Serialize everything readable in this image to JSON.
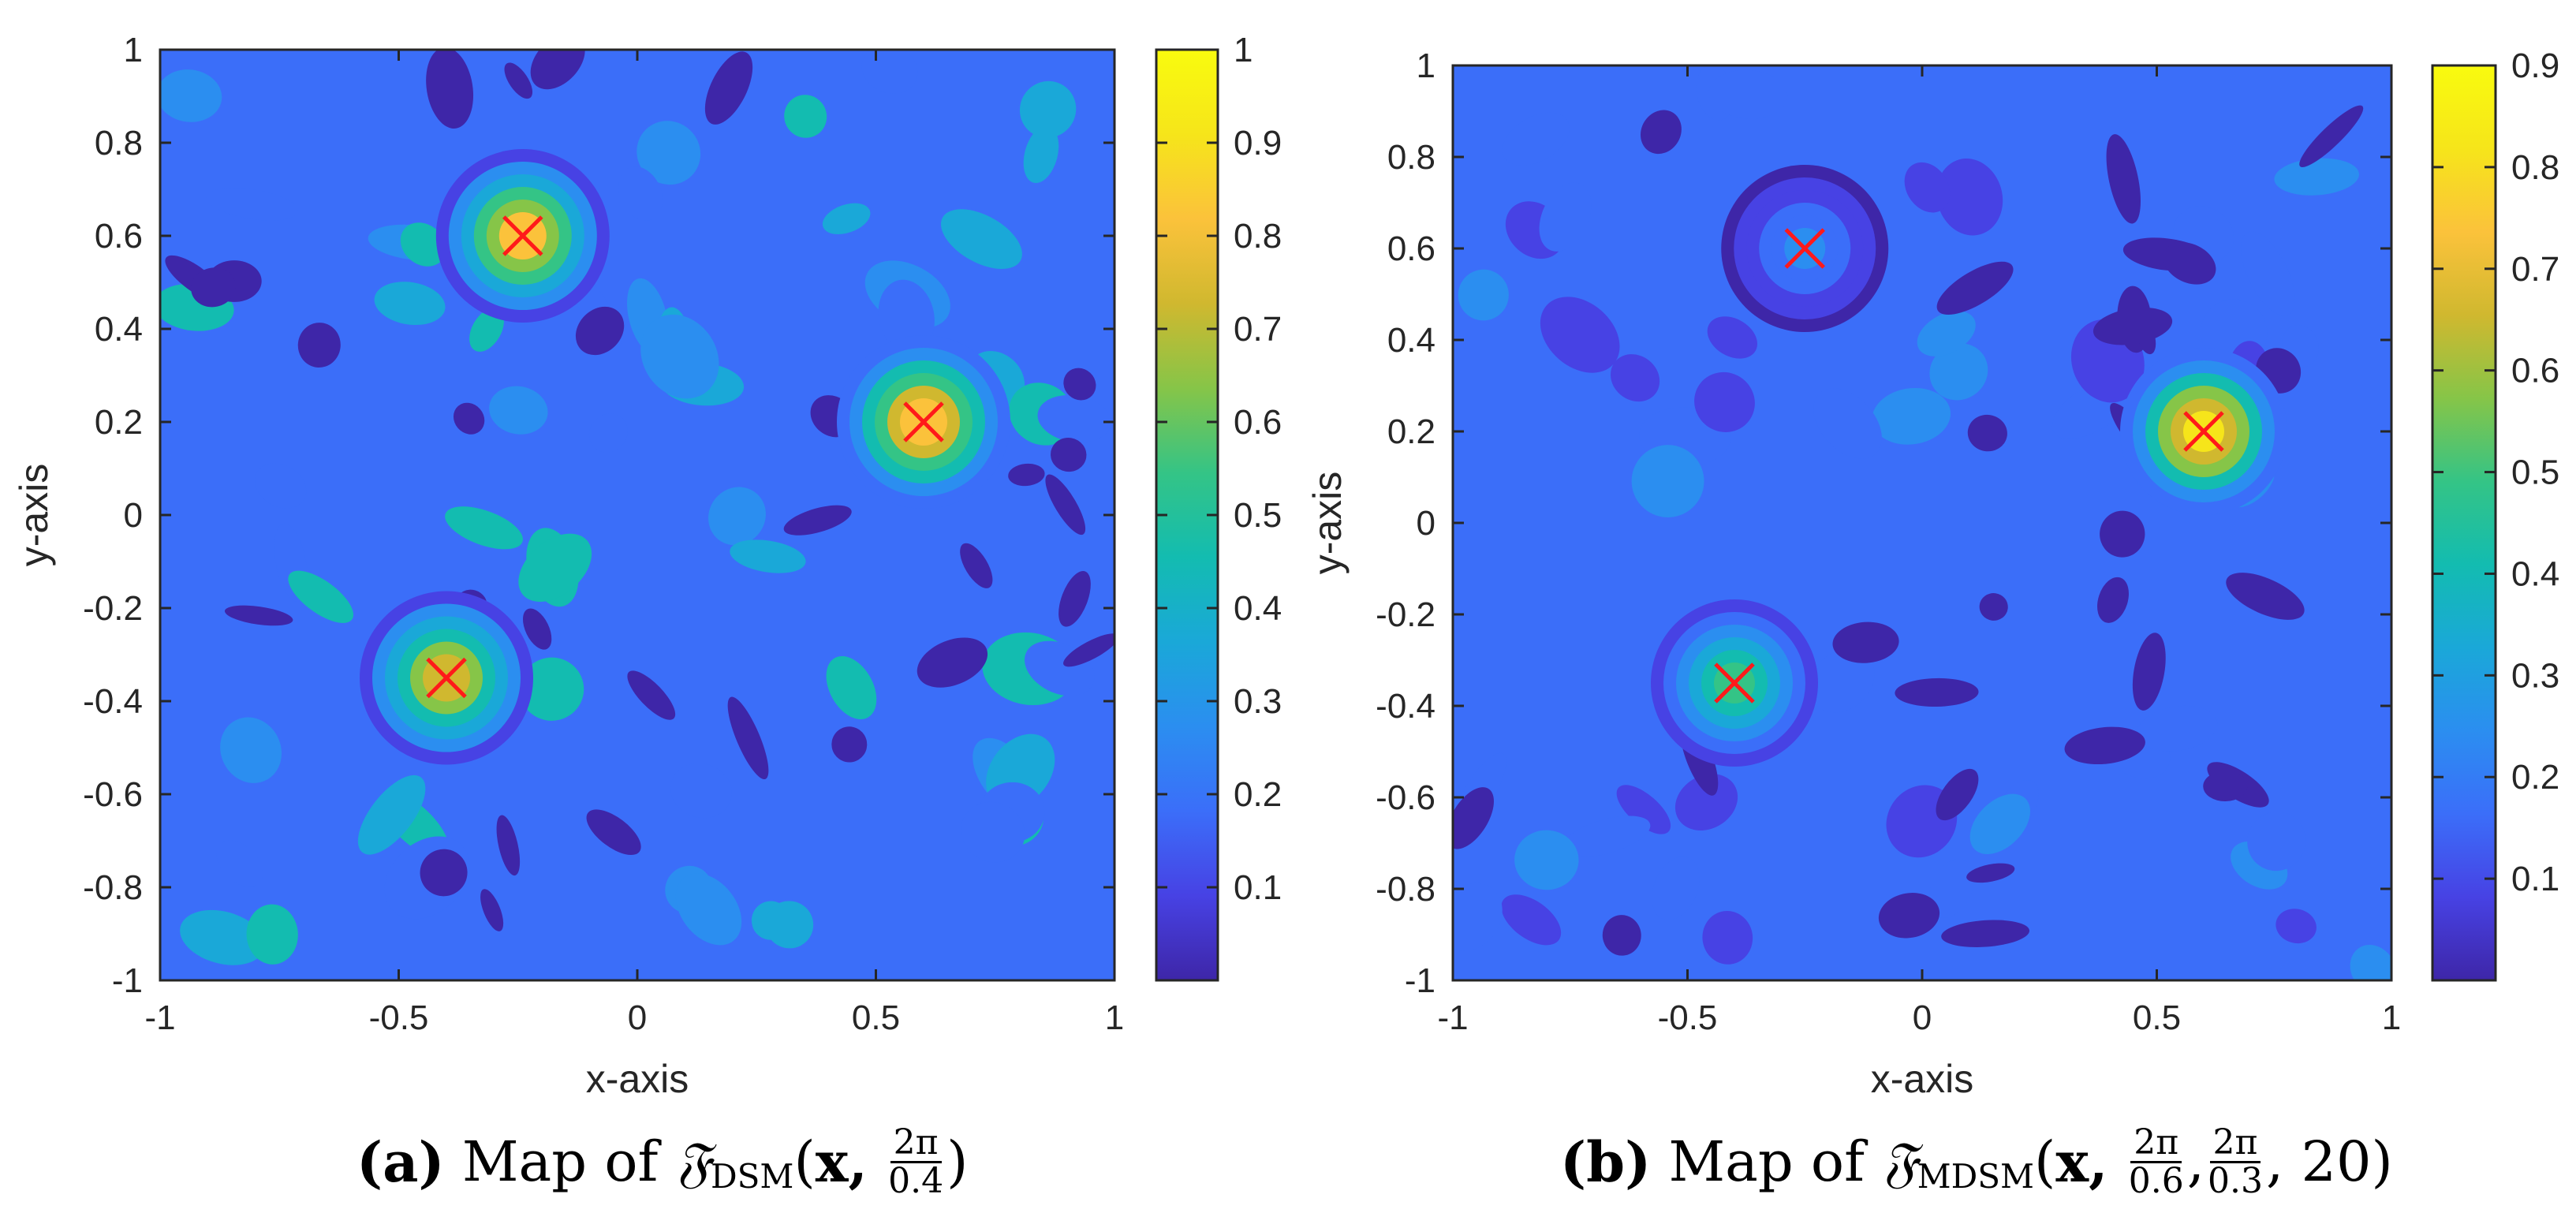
{
  "colors": {
    "scale": [
      "#3e26a8",
      "#4742e4",
      "#3b6ef9",
      "#2b8ef0",
      "#1aa8d8",
      "#13bcb0",
      "#34c486",
      "#86c548",
      "#d0b82f",
      "#fbc23b",
      "#f6e51a",
      "#f9fb0e"
    ],
    "marker": "#ff1a1a",
    "axis": "#262626"
  },
  "icons": {
    "marker": "red-cross-marker"
  },
  "chart_data": [
    {
      "type": "heatmap",
      "panel": "a",
      "xlabel": "x-axis",
      "ylabel": "y-axis",
      "xlim": [
        -1,
        1
      ],
      "ylim": [
        -1,
        1
      ],
      "x_ticks": [
        "-1",
        "-0.5",
        "0",
        "0.5",
        "1"
      ],
      "y_ticks": [
        "1",
        "0.8",
        "0.6",
        "0.4",
        "0.2",
        "0",
        "-0.2",
        "-0.4",
        "-0.6",
        "-0.8",
        "-1"
      ],
      "colorbar_range": [
        0,
        1
      ],
      "colorbar_ticks": [
        "1",
        "0.9",
        "0.8",
        "0.7",
        "0.6",
        "0.5",
        "0.4",
        "0.3",
        "0.2",
        "0.1"
      ],
      "markers": [
        {
          "x": -0.24,
          "y": 0.6
        },
        {
          "x": 0.6,
          "y": 0.2
        },
        {
          "x": -0.4,
          "y": -0.35
        }
      ],
      "peaks": [
        {
          "x": -0.24,
          "y": 0.6,
          "value": 0.8
        },
        {
          "x": 0.6,
          "y": 0.2,
          "value": 0.85
        },
        {
          "x": -0.4,
          "y": -0.35,
          "value": 0.72
        }
      ],
      "caption": {
        "label": "(a)",
        "text": "Map of",
        "symbol": "𝔉",
        "sub": "DSM",
        "arg": "x,",
        "fracs": [
          {
            "num": "2π",
            "den": "0.4"
          }
        ],
        "tail": ")"
      }
    },
    {
      "type": "heatmap",
      "panel": "b",
      "xlabel": "x-axis",
      "ylabel": "y-axis",
      "xlim": [
        -1,
        1
      ],
      "ylim": [
        -1,
        1
      ],
      "x_ticks": [
        "-1",
        "-0.5",
        "0",
        "0.5",
        "1"
      ],
      "y_ticks": [
        "1",
        "0.8",
        "0.6",
        "0.4",
        "0.2",
        "0",
        "-0.2",
        "-0.4",
        "-0.6",
        "-0.8",
        "-1"
      ],
      "colorbar_range": [
        0,
        0.9
      ],
      "colorbar_ticks": [
        "0.9",
        "0.8",
        "0.7",
        "0.6",
        "0.5",
        "0.4",
        "0.3",
        "0.2",
        "0.1"
      ],
      "markers": [
        {
          "x": -0.25,
          "y": 0.6
        },
        {
          "x": 0.6,
          "y": 0.2
        },
        {
          "x": -0.4,
          "y": -0.35
        }
      ],
      "peaks": [
        {
          "x": -0.25,
          "y": 0.6,
          "value": 0.22
        },
        {
          "x": 0.6,
          "y": 0.2,
          "value": 0.8
        },
        {
          "x": -0.4,
          "y": -0.35,
          "value": 0.45
        }
      ],
      "caption": {
        "label": "(b)",
        "text": "Map of",
        "symbol": "𝔉",
        "sub": "MDSM",
        "arg": "x,",
        "fracs": [
          {
            "num": "2π",
            "den": "0.6"
          },
          {
            "num": "2π",
            "den": "0.3"
          }
        ],
        "tail": ", 20)"
      }
    }
  ]
}
